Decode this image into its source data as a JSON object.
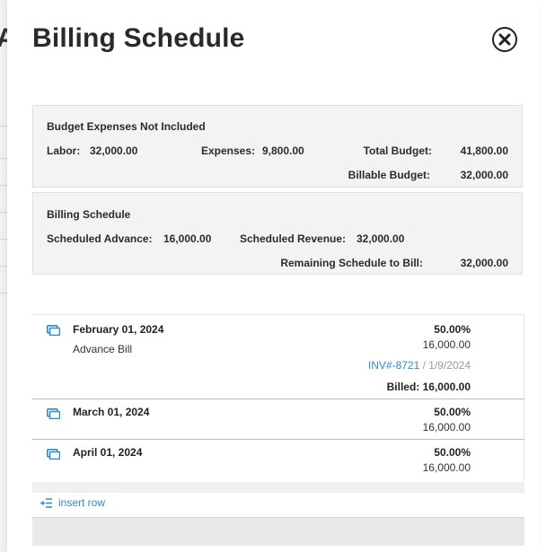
{
  "background": {
    "letter": "A"
  },
  "modal": {
    "title": "Billing Schedule",
    "close_icon": "close-circle-icon"
  },
  "budget": {
    "heading": "Budget  Expenses Not Included",
    "labor_label": "Labor:",
    "labor_value": "32,000.00",
    "expenses_label": "Expenses:",
    "expenses_value": "9,800.00",
    "total_label": "Total Budget:",
    "total_value": "41,800.00",
    "billable_label": "Billable Budget:",
    "billable_value": "32,000.00"
  },
  "billing": {
    "heading": "Billing Schedule",
    "advance_label": "Scheduled Advance:",
    "advance_value": "16,000.00",
    "revenue_label": "Scheduled Revenue:",
    "revenue_value": "32,000.00",
    "remaining_label": "Remaining Schedule to Bill:",
    "remaining_value": "32,000.00"
  },
  "schedule": {
    "rows": [
      {
        "date": "February 01, 2024",
        "note": "Advance Bill",
        "percent": "50.00%",
        "amount": "16,000.00",
        "invoice": "INV#-8721",
        "invoice_date": " / 1/9/2024",
        "billed": "Billed: 16,000.00",
        "icon": "copy-icon"
      },
      {
        "date": "March 01, 2024",
        "percent": "50.00%",
        "amount": "16,000.00",
        "icon": "copy-icon"
      },
      {
        "date": "April 01, 2024",
        "percent": "50.00%",
        "amount": "16,000.00",
        "icon": "copy-icon"
      }
    ]
  },
  "insert_row": {
    "label": "insert row",
    "icon": "insert-row-icon"
  },
  "colors": {
    "link": "#2e8bc9",
    "panel_bg": "#f3f3f3",
    "text": "#222222"
  }
}
